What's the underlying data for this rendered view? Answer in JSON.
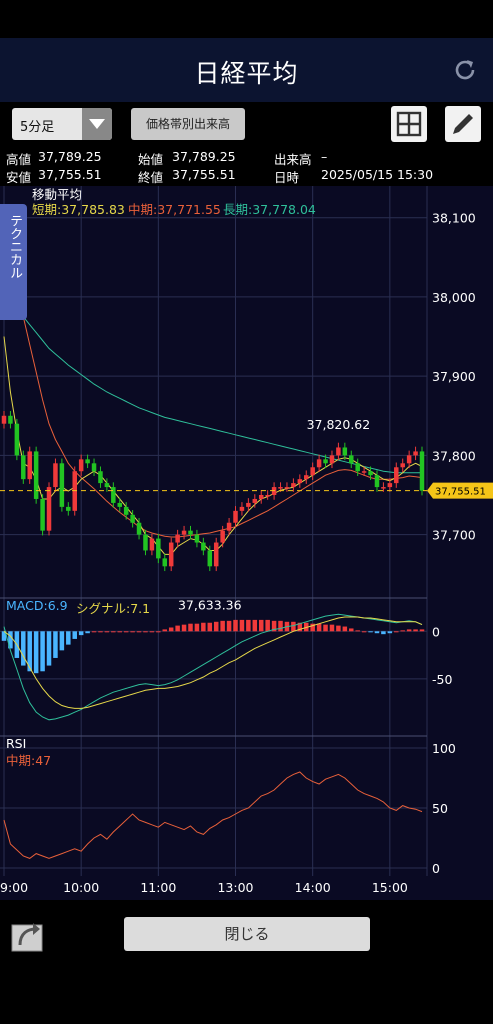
{
  "header": {
    "title": "日経平均"
  },
  "toolbar": {
    "interval": "5分足",
    "price_band_label": "価格帯別出来高"
  },
  "info": {
    "high_label": "高値",
    "high": "37,789.25",
    "low_label": "安値",
    "low": "37,755.51",
    "open_label": "始値",
    "open": "37,789.25",
    "close_label": "終値",
    "close": "37,755.51",
    "volume_label": "出来高",
    "volume": "–",
    "datetime_label": "日時",
    "datetime": "2025/05/15 15:30"
  },
  "side_tab": "テクニカル",
  "footer": {
    "close_label": "閉じる"
  },
  "colors": {
    "short": "#e6d84a",
    "mid": "#e8603a",
    "long": "#2fbf9a",
    "up": "#f03a3a",
    "down": "#22c422",
    "macd": "#4ab5ff",
    "signal": "#e6d84a",
    "rsi": "#e8603a",
    "price_tag": "#f5c518"
  },
  "chart_data": [
    {
      "type": "candlestick",
      "panel_title": "移動平均",
      "series": [
        {
          "name": "短期",
          "value_label": "37,785.83"
        },
        {
          "name": "中期",
          "value_label": "37,771.55"
        },
        {
          "name": "長期",
          "value_label": "37,778.04"
        }
      ],
      "y_ticks": [
        37700,
        37800,
        37900,
        38000,
        38100
      ],
      "y_tick_labels": [
        "37,700",
        "37,800",
        "37,900",
        "38,000",
        "38,100"
      ],
      "ylim": [
        37620,
        38140
      ],
      "x_tick_labels": [
        "9:00",
        "10:00",
        "11:00",
        "13:00",
        "14:00",
        "15:00"
      ],
      "x_tick_index": [
        0,
        12,
        24,
        36,
        48,
        60
      ],
      "annotations": [
        {
          "text": "37,633.36",
          "index": 32,
          "value": 37633.36
        },
        {
          "text": "37,820.62",
          "index": 52,
          "value": 37820.62
        }
      ],
      "last_price": 37755.51,
      "last_price_label": "37,755.51",
      "closes": [
        37850,
        37840,
        37800,
        37770,
        37805,
        37745,
        37705,
        37760,
        37790,
        37735,
        37730,
        37780,
        37795,
        37790,
        37780,
        37765,
        37760,
        37740,
        37735,
        37725,
        37715,
        37700,
        37680,
        37695,
        37670,
        37660,
        37690,
        37700,
        37705,
        37700,
        37690,
        37680,
        37660,
        37690,
        37705,
        37715,
        37730,
        37735,
        37740,
        37745,
        37750,
        37750,
        37760,
        37760,
        37760,
        37765,
        37770,
        37775,
        37785,
        37795,
        37790,
        37800,
        37810,
        37800,
        37790,
        37780,
        37780,
        37775,
        37760,
        37760,
        37765,
        37785,
        37790,
        37800,
        37805,
        37755.51
      ],
      "moving_averages": {
        "short": [
          37950,
          37880,
          37830,
          37790,
          37785,
          37770,
          37745,
          37745,
          37755,
          37760,
          37755,
          37760,
          37770,
          37775,
          37780,
          37775,
          37765,
          37755,
          37745,
          37735,
          37725,
          37715,
          37700,
          37695,
          37685,
          37675,
          37675,
          37685,
          37690,
          37695,
          37693,
          37688,
          37680,
          37680,
          37688,
          37700,
          37710,
          37720,
          37730,
          37738,
          37745,
          37748,
          37752,
          37756,
          37758,
          37760,
          37765,
          37770,
          37775,
          37780,
          37785,
          37790,
          37795,
          37797,
          37795,
          37790,
          37785,
          37780,
          37775,
          37770,
          37768,
          37772,
          37778,
          37786,
          37790,
          37786
        ],
        "mid": [
          38060,
          38040,
          38010,
          37975,
          37940,
          37905,
          37870,
          37840,
          37820,
          37805,
          37790,
          37780,
          37772,
          37765,
          37758,
          37750,
          37742,
          37735,
          37728,
          37722,
          37716,
          37710,
          37705,
          37702,
          37700,
          37698,
          37697,
          37697,
          37698,
          37699,
          37700,
          37701,
          37702,
          37704,
          37706,
          37708,
          37710,
          37714,
          37718,
          37722,
          37726,
          37730,
          37735,
          37740,
          37745,
          37750,
          37755,
          37760,
          37765,
          37770,
          37775,
          37778,
          37781,
          37782,
          37781,
          37778,
          37775,
          37772,
          37770,
          37770,
          37770,
          37771,
          37772,
          37774,
          37773,
          37772
        ],
        "long": [
          38010,
          37995,
          37985,
          37975,
          37965,
          37955,
          37945,
          37935,
          37928,
          37921,
          37914,
          37908,
          37902,
          37896,
          37890,
          37885,
          37880,
          37876,
          37872,
          37868,
          37864,
          37860,
          37857,
          37854,
          37851,
          37848,
          37846,
          37844,
          37842,
          37840,
          37838,
          37836,
          37834,
          37832,
          37830,
          37828,
          37826,
          37824,
          37822,
          37820,
          37818,
          37816,
          37814,
          37812,
          37810,
          37808,
          37806,
          37804,
          37802,
          37800,
          37798,
          37796,
          37794,
          37792,
          37790,
          37788,
          37786,
          37784,
          37782,
          37780,
          37779,
          37778,
          37778,
          37778,
          37778,
          37778
        ]
      }
    },
    {
      "type": "bar+line",
      "panel_title": "MACD",
      "series": [
        {
          "name": "MACD",
          "value_label": "6.9"
        },
        {
          "name": "シグナル",
          "value_label": "7.1"
        }
      ],
      "y_tick_labels": [
        "0",
        "-50"
      ],
      "ylim": [
        -110,
        35
      ],
      "histogram": [
        -10,
        -18,
        -28,
        -36,
        -42,
        -44,
        -42,
        -36,
        -28,
        -20,
        -14,
        -8,
        -4,
        -2,
        0,
        0,
        0,
        0,
        0,
        0,
        0,
        0,
        0,
        0,
        0,
        2,
        4,
        6,
        7,
        8,
        8,
        9,
        9,
        10,
        11,
        11,
        12,
        12,
        12,
        12,
        12,
        12,
        11,
        11,
        10,
        10,
        9,
        9,
        8,
        8,
        7,
        7,
        6,
        5,
        3,
        1,
        0,
        -1,
        -2,
        -3,
        -2,
        0,
        1,
        2,
        2,
        2
      ],
      "macd": [
        5,
        -20,
        -40,
        -60,
        -75,
        -85,
        -90,
        -93,
        -92,
        -90,
        -88,
        -85,
        -82,
        -78,
        -74,
        -70,
        -67,
        -64,
        -62,
        -60,
        -58,
        -56,
        -55,
        -56,
        -57,
        -56,
        -54,
        -51,
        -47,
        -43,
        -39,
        -35,
        -31,
        -27,
        -23,
        -19,
        -15,
        -11,
        -8,
        -5,
        -2,
        0,
        2,
        3,
        5,
        6,
        8,
        10,
        12,
        14,
        16,
        17,
        18,
        17,
        16,
        15,
        14,
        13,
        12,
        11,
        10,
        9,
        10,
        11,
        10,
        7
      ],
      "signal": [
        0,
        -5,
        -14,
        -26,
        -38,
        -50,
        -60,
        -68,
        -74,
        -78,
        -80,
        -81,
        -81,
        -80,
        -78,
        -76,
        -74,
        -72,
        -70,
        -68,
        -66,
        -64,
        -62,
        -61,
        -60,
        -60,
        -59,
        -58,
        -56,
        -54,
        -51,
        -48,
        -44,
        -41,
        -37,
        -33,
        -30,
        -26,
        -22,
        -18,
        -15,
        -12,
        -9,
        -6,
        -3,
        0,
        2,
        4,
        6,
        8,
        10,
        12,
        14,
        15,
        15,
        15,
        14,
        14,
        13,
        12,
        11,
        10,
        10,
        10,
        10,
        7
      ]
    },
    {
      "type": "line",
      "panel_title": "RSI",
      "series": [
        {
          "name": "中期",
          "value_label": "47"
        }
      ],
      "y_tick_labels": [
        "100",
        "50",
        "0"
      ],
      "ylim": [
        0,
        100
      ],
      "values": [
        40,
        20,
        15,
        10,
        8,
        12,
        10,
        8,
        10,
        12,
        14,
        16,
        14,
        20,
        25,
        28,
        24,
        30,
        35,
        40,
        45,
        40,
        38,
        36,
        34,
        38,
        36,
        34,
        32,
        35,
        30,
        28,
        33,
        36,
        40,
        42,
        45,
        48,
        50,
        55,
        60,
        62,
        65,
        70,
        75,
        78,
        80,
        75,
        72,
        70,
        74,
        76,
        78,
        75,
        70,
        65,
        62,
        60,
        58,
        55,
        50,
        48,
        52,
        50,
        49,
        47
      ]
    }
  ]
}
